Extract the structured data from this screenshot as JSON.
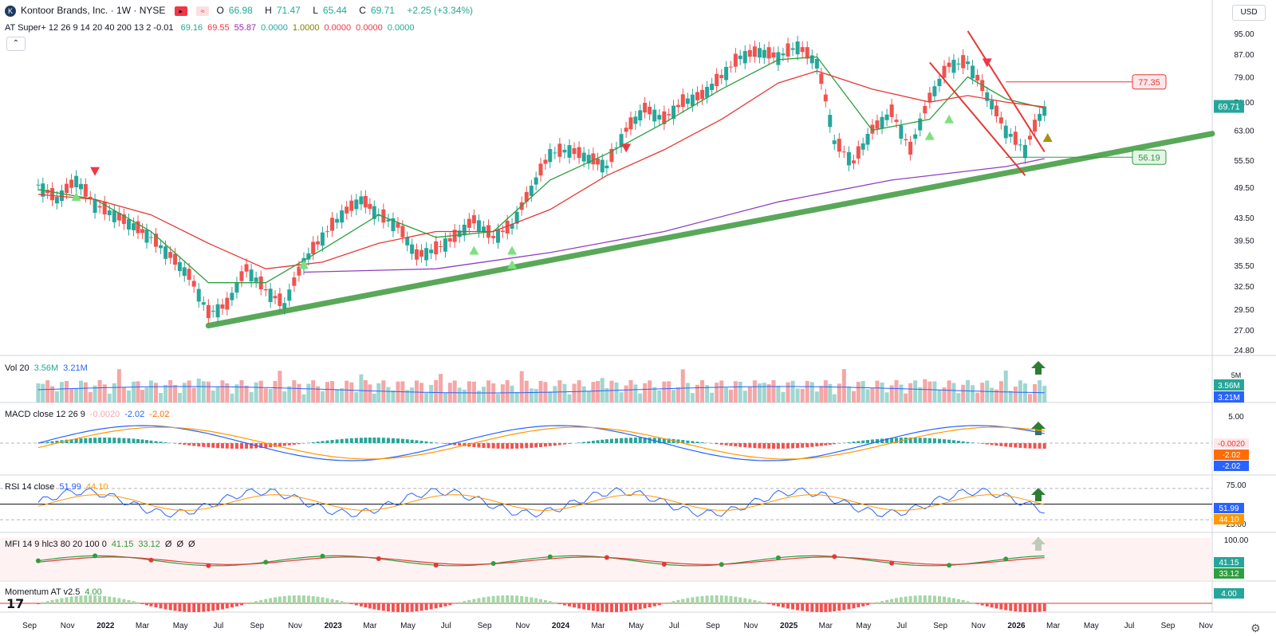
{
  "header": {
    "logo_letter": "K",
    "symbol": "Kontoor Brands, Inc. · 1W · NYSE",
    "open_label": "O",
    "open": "66.98",
    "high_label": "H",
    "high": "71.47",
    "low_label": "L",
    "low": "65.44",
    "close_label": "C",
    "close": "69.71",
    "change": "+2.25 (+3.34%)",
    "currency": "USD",
    "collapse_icon": "chevron-up-icon"
  },
  "indicators": {
    "at_super": {
      "name": "AT Super+ 12 26 9 14 20 40 200 13 2 -0.01",
      "values": [
        "69.16",
        "69.55",
        "55.87",
        "0.0000",
        "1.0000",
        "0.0000",
        "0.0000",
        "0.0000"
      ],
      "colors": [
        "#22ab94",
        "#f23645",
        "#9c27b0",
        "#22ab94",
        "#808000",
        "#f23645",
        "#f23645",
        "#22ab94"
      ]
    },
    "volume": {
      "name": "Vol 20",
      "v1": "3.56M",
      "v2": "3.21M"
    },
    "macd": {
      "name": "MACD close 12 26 9",
      "v1": "-0.0020",
      "v2": "-2.02",
      "v3": "-2.02"
    },
    "rsi": {
      "name": "RSI 14 close",
      "v1": "51.99",
      "v2": "44.10"
    },
    "mfi": {
      "name": "MFI 14 9 hlc3 80 20 100 0",
      "v1": "41.15",
      "v2": "33.12",
      "v3": "Ø",
      "v4": "Ø",
      "v5": "Ø"
    },
    "momentum": {
      "name": "Momentum AT v2.5",
      "v1": "4.00"
    }
  },
  "colors": {
    "up": "#26a69a",
    "down": "#ef5350",
    "trend": "#3d9a3d",
    "ma_fast": "#2e9e3e",
    "ma_mid": "#e53935",
    "ma_slow": "#8e3fbf",
    "channel": "#e53935"
  },
  "chart_data": {
    "type": "line",
    "title": "Kontoor Brands, Inc. · 1W · NYSE",
    "price_axis": [
      "95.00",
      "87.00",
      "79.00",
      "71.00",
      "63.00",
      "55.50",
      "49.50",
      "43.50",
      "39.50",
      "35.50",
      "32.50",
      "29.50",
      "27.00",
      "24.80"
    ],
    "price_ticks": [
      95,
      87,
      79,
      71,
      63,
      55.5,
      49.5,
      43.5,
      39.5,
      35.5,
      32.5,
      29.5,
      27,
      24.8
    ],
    "x_labels": [
      "Sep",
      "Nov",
      "2022",
      "Mar",
      "May",
      "Jul",
      "Sep",
      "Nov",
      "2023",
      "Mar",
      "May",
      "Jul",
      "Sep",
      "Nov",
      "2024",
      "Mar",
      "May",
      "Jul",
      "Sep",
      "Nov",
      "2025",
      "Mar",
      "May",
      "Jul",
      "Sep",
      "Nov",
      "2026",
      "Mar",
      "May",
      "Jul",
      "Sep",
      "Nov"
    ],
    "close_series": [
      {
        "date": "2021-09",
        "close": 50
      },
      {
        "date": "2021-10",
        "close": 47
      },
      {
        "date": "2021-11",
        "close": 51
      },
      {
        "date": "2021-12",
        "close": 46
      },
      {
        "date": "2022-01",
        "close": 44
      },
      {
        "date": "2022-02",
        "close": 42
      },
      {
        "date": "2022-03",
        "close": 40
      },
      {
        "date": "2022-04",
        "close": 37
      },
      {
        "date": "2022-05",
        "close": 34
      },
      {
        "date": "2022-06",
        "close": 29
      },
      {
        "date": "2022-07",
        "close": 30
      },
      {
        "date": "2022-08",
        "close": 35
      },
      {
        "date": "2022-09",
        "close": 32
      },
      {
        "date": "2022-10",
        "close": 30
      },
      {
        "date": "2022-11",
        "close": 36
      },
      {
        "date": "2022-12",
        "close": 40
      },
      {
        "date": "2023-01",
        "close": 44
      },
      {
        "date": "2023-02",
        "close": 47
      },
      {
        "date": "2023-03",
        "close": 44
      },
      {
        "date": "2023-04",
        "close": 42
      },
      {
        "date": "2023-05",
        "close": 37
      },
      {
        "date": "2023-06",
        "close": 38
      },
      {
        "date": "2023-07",
        "close": 40
      },
      {
        "date": "2023-08",
        "close": 43
      },
      {
        "date": "2023-09",
        "close": 40
      },
      {
        "date": "2023-10",
        "close": 42
      },
      {
        "date": "2023-11",
        "close": 49
      },
      {
        "date": "2023-12",
        "close": 57
      },
      {
        "date": "2024-01",
        "close": 58
      },
      {
        "date": "2024-02",
        "close": 56
      },
      {
        "date": "2024-03",
        "close": 54
      },
      {
        "date": "2024-04",
        "close": 63
      },
      {
        "date": "2024-05",
        "close": 69
      },
      {
        "date": "2024-06",
        "close": 66
      },
      {
        "date": "2024-07",
        "close": 71
      },
      {
        "date": "2024-08",
        "close": 73
      },
      {
        "date": "2024-09",
        "close": 79
      },
      {
        "date": "2024-10",
        "close": 86
      },
      {
        "date": "2024-11",
        "close": 88
      },
      {
        "date": "2024-12",
        "close": 86
      },
      {
        "date": "2025-01",
        "close": 90
      },
      {
        "date": "2025-02",
        "close": 84
      },
      {
        "date": "2025-03",
        "close": 60
      },
      {
        "date": "2025-04",
        "close": 55
      },
      {
        "date": "2025-05",
        "close": 63
      },
      {
        "date": "2025-06",
        "close": 68
      },
      {
        "date": "2025-07",
        "close": 58
      },
      {
        "date": "2025-08",
        "close": 72
      },
      {
        "date": "2025-09",
        "close": 83
      },
      {
        "date": "2025-10",
        "close": 84
      },
      {
        "date": "2025-11",
        "close": 73
      },
      {
        "date": "2025-12",
        "close": 63
      },
      {
        "date": "2026-01",
        "close": 58
      },
      {
        "date": "2026-02",
        "close": 69.71
      }
    ],
    "series": [
      {
        "name": "AT Super+ fast MA",
        "values": [
          {
            "date": "2021-09",
            "v": 49
          },
          {
            "date": "2021-12",
            "v": 47
          },
          {
            "date": "2022-03",
            "v": 41
          },
          {
            "date": "2022-06",
            "v": 33
          },
          {
            "date": "2022-09",
            "v": 33
          },
          {
            "date": "2022-12",
            "v": 38
          },
          {
            "date": "2023-03",
            "v": 44
          },
          {
            "date": "2023-06",
            "v": 40
          },
          {
            "date": "2023-09",
            "v": 41
          },
          {
            "date": "2023-12",
            "v": 51
          },
          {
            "date": "2024-03",
            "v": 57
          },
          {
            "date": "2024-06",
            "v": 65
          },
          {
            "date": "2024-09",
            "v": 75
          },
          {
            "date": "2024-12",
            "v": 85
          },
          {
            "date": "2025-02",
            "v": 86
          },
          {
            "date": "2025-05",
            "v": 63
          },
          {
            "date": "2025-08",
            "v": 66
          },
          {
            "date": "2025-10",
            "v": 79
          },
          {
            "date": "2025-12",
            "v": 72
          },
          {
            "date": "2026-02",
            "v": 69.16
          }
        ]
      },
      {
        "name": "AT Super+ mid MA",
        "values": [
          {
            "date": "2021-09",
            "v": 48
          },
          {
            "date": "2021-12",
            "v": 47
          },
          {
            "date": "2022-03",
            "v": 44
          },
          {
            "date": "2022-06",
            "v": 39
          },
          {
            "date": "2022-09",
            "v": 35
          },
          {
            "date": "2022-12",
            "v": 36
          },
          {
            "date": "2023-03",
            "v": 39
          },
          {
            "date": "2023-06",
            "v": 41
          },
          {
            "date": "2023-09",
            "v": 41
          },
          {
            "date": "2023-12",
            "v": 45
          },
          {
            "date": "2024-03",
            "v": 52
          },
          {
            "date": "2024-06",
            "v": 58
          },
          {
            "date": "2024-09",
            "v": 66
          },
          {
            "date": "2024-12",
            "v": 77
          },
          {
            "date": "2025-02",
            "v": 81
          },
          {
            "date": "2025-05",
            "v": 75
          },
          {
            "date": "2025-08",
            "v": 71
          },
          {
            "date": "2025-10",
            "v": 73
          },
          {
            "date": "2025-12",
            "v": 71
          },
          {
            "date": "2026-02",
            "v": 69.55
          }
        ]
      },
      {
        "name": "AT Super+ slow MA",
        "values": [
          {
            "date": "2022-11",
            "v": 34.5
          },
          {
            "date": "2023-06",
            "v": 35
          },
          {
            "date": "2023-12",
            "v": 37.5
          },
          {
            "date": "2024-06",
            "v": 41
          },
          {
            "date": "2024-12",
            "v": 46.5
          },
          {
            "date": "2025-06",
            "v": 51
          },
          {
            "date": "2025-12",
            "v": 54
          },
          {
            "date": "2026-02",
            "v": 55.87
          }
        ]
      }
    ],
    "trendline": [
      {
        "date": "2022-06",
        "v": 27.5
      },
      {
        "date": "2026-02",
        "v": 56.5
      }
    ],
    "channel": [
      {
        "from": {
          "date": "2025-08",
          "v": 84
        },
        "to": {
          "date": "2026-01",
          "v": 52
        }
      },
      {
        "from": {
          "date": "2025-10",
          "v": 96
        },
        "to": {
          "date": "2026-02",
          "v": 57.5
        }
      }
    ],
    "levels": [
      {
        "label": "77.35",
        "value": 77.35
      },
      {
        "label": "56.19",
        "value": 56.19
      }
    ],
    "last_price_label": "69.71",
    "panes": {
      "volume": {
        "labels": [
          "5M"
        ]
      },
      "macd": {
        "labels": [
          "5.00"
        ],
        "last": [
          "-0.0020",
          "-2.02",
          "-2.02"
        ]
      },
      "rsi": {
        "labels": [
          "75.00",
          "25.00"
        ],
        "levels": [
          70,
          50,
          30
        ],
        "last": [
          "51.99",
          "44.10"
        ]
      },
      "mfi": {
        "labels": [
          "100.00"
        ],
        "last": [
          "41.15",
          "33.12"
        ]
      },
      "momentum": {
        "last": [
          "4.00"
        ]
      }
    }
  }
}
